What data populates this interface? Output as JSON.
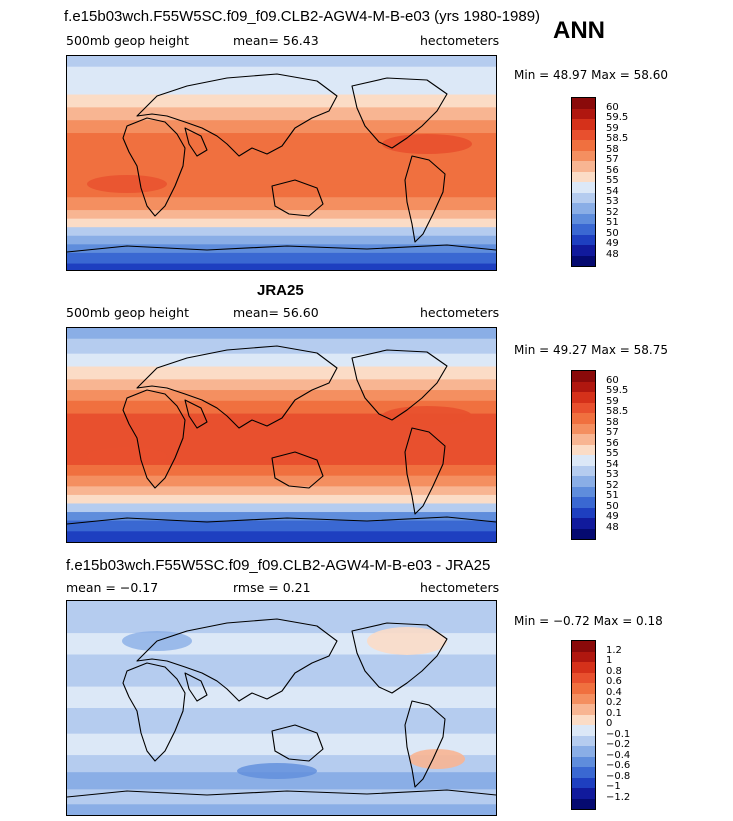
{
  "season": "ANN",
  "panels": [
    {
      "title": "f.e15b03wch.F55W5SC.f09_f09.CLB2-AGW4-M-B-e03 (yrs 1980-1989)",
      "var_label": "500mb geop height",
      "stat_label": "mean=  56.43",
      "units": "hectometers",
      "minmax": "Min =  48.97 Max =  58.60",
      "colorbar_labels": [
        "60",
        "59.5",
        "59",
        "58.5",
        "58",
        "57",
        "56",
        "55",
        "54",
        "53",
        "52",
        "51",
        "50",
        "49",
        "48"
      ],
      "colorbar_colors": [
        "#8a0a0a",
        "#b0170f",
        "#d5311a",
        "#e8502e",
        "#f0703f",
        "#f48f60",
        "#f8b592",
        "#fbdcc6",
        "#dce8f7",
        "#b5ccef",
        "#8aaee6",
        "#5f8ddc",
        "#3a68d2",
        "#1e3fc0",
        "#111a9c",
        "#050a70"
      ],
      "map_mean": 56.43,
      "map_min": 48.97,
      "map_max": 58.6
    },
    {
      "title": "JRA25",
      "var_label": "500mb geop height",
      "stat_label": "mean=  56.60",
      "units": "hectometers",
      "minmax": "Min =  49.27 Max =  58.75",
      "colorbar_labels": [
        "60",
        "59.5",
        "59",
        "58.5",
        "58",
        "57",
        "56",
        "55",
        "54",
        "53",
        "52",
        "51",
        "50",
        "49",
        "48"
      ],
      "colorbar_colors": [
        "#8a0a0a",
        "#b0170f",
        "#d5311a",
        "#e8502e",
        "#f0703f",
        "#f48f60",
        "#f8b592",
        "#fbdcc6",
        "#dce8f7",
        "#b5ccef",
        "#8aaee6",
        "#5f8ddc",
        "#3a68d2",
        "#1e3fc0",
        "#111a9c",
        "#050a70"
      ],
      "map_mean": 56.6,
      "map_min": 49.27,
      "map_max": 58.75
    },
    {
      "title": "f.e15b03wch.F55W5SC.f09_f09.CLB2-AGW4-M-B-e03 - JRA25",
      "var_label": "mean =  −0.17",
      "stat_label": "rmse =  0.21",
      "units": "hectometers",
      "minmax": "Min =  −0.72 Max =   0.18",
      "colorbar_labels": [
        "1.2",
        "1",
        "0.8",
        "0.6",
        "0.4",
        "0.2",
        "0.1",
        "0",
        "−0.1",
        "−0.2",
        "−0.4",
        "−0.6",
        "−0.8",
        "−1",
        "−1.2"
      ],
      "colorbar_colors": [
        "#8a0a0a",
        "#b0170f",
        "#d5311a",
        "#e8502e",
        "#f0703f",
        "#f48f60",
        "#f8b592",
        "#fbdcc6",
        "#dce8f7",
        "#b5ccef",
        "#8aaee6",
        "#5f8ddc",
        "#3a68d2",
        "#1e3fc0",
        "#111a9c",
        "#050a70"
      ],
      "map_mean": -0.17,
      "map_min": -0.72,
      "map_max": 0.18
    }
  ]
}
